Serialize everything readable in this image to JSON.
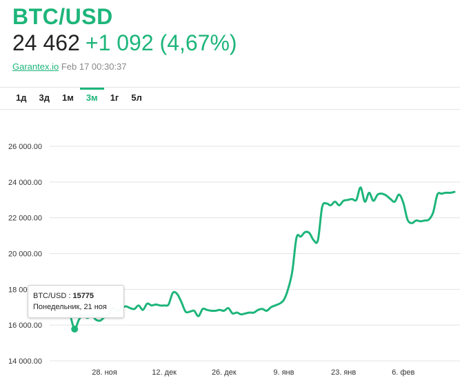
{
  "header": {
    "pair": "BTC/USD",
    "price": "24 462",
    "change": "+1 092 (4,67%)",
    "source": "Garantex.io",
    "timestamp": "Feb 17 00:30:37"
  },
  "tabs": [
    {
      "label": "1д",
      "active": false
    },
    {
      "label": "3д",
      "active": false
    },
    {
      "label": "1м",
      "active": false
    },
    {
      "label": "3м",
      "active": true
    },
    {
      "label": "1г",
      "active": false
    },
    {
      "label": "5л",
      "active": false
    }
  ],
  "tooltip": {
    "series": "BTC/USD",
    "separator": " : ",
    "value": "15775",
    "date": "Понедельник, 21 ноя"
  },
  "colors": {
    "accent": "#1db57a",
    "grid": "#e3e3e3",
    "text": "#222222"
  },
  "chart_data": {
    "type": "line",
    "ylim": [
      14000,
      26000
    ],
    "ytick_labels": [
      "14 000.00",
      "16 000.00",
      "18 000.00",
      "20 000.00",
      "22 000.00",
      "24 000.00",
      "26 000.00"
    ],
    "yticks": [
      14000,
      16000,
      18000,
      20000,
      22000,
      24000,
      26000
    ],
    "xlim": [
      0,
      90
    ],
    "xticks": [
      {
        "x": 8,
        "label": "28. ноя"
      },
      {
        "x": 22,
        "label": "12. дек"
      },
      {
        "x": 36,
        "label": "26. дек"
      },
      {
        "x": 50,
        "label": "9. янв"
      },
      {
        "x": 64,
        "label": "23. янв"
      },
      {
        "x": 78,
        "label": "6. фев"
      }
    ],
    "grid": true,
    "highlight": {
      "x": 1,
      "y": 15775
    },
    "series": [
      {
        "x": [
          0,
          1,
          2,
          3,
          4,
          5,
          6,
          7,
          8,
          9,
          10,
          11,
          12,
          13,
          14,
          15,
          16,
          17,
          18,
          19,
          20,
          21,
          22,
          23,
          24,
          25,
          26,
          27,
          28,
          29,
          30,
          31,
          32,
          33,
          34,
          35,
          36,
          37,
          38,
          39,
          40,
          41,
          42,
          43,
          44,
          45,
          46,
          47,
          48,
          49,
          50,
          51,
          52,
          53,
          54,
          55,
          56,
          57,
          58,
          59,
          60,
          61,
          62,
          63,
          64,
          65,
          66,
          67,
          68,
          69,
          70,
          71,
          72,
          73,
          74,
          75,
          76,
          77,
          78,
          79,
          80,
          81,
          82,
          83,
          84,
          85,
          86,
          87,
          88,
          89,
          90
        ],
        "y": [
          16550,
          15775,
          16300,
          16550,
          16400,
          16550,
          16300,
          16250,
          16450,
          16600,
          16950,
          16800,
          16950,
          17050,
          16950,
          16900,
          17100,
          16850,
          17200,
          17100,
          17150,
          17100,
          17100,
          17150,
          17800,
          17750,
          17300,
          16750,
          16750,
          16800,
          16500,
          16900,
          16850,
          16800,
          16800,
          16850,
          16800,
          16950,
          16650,
          16700,
          16600,
          16650,
          16700,
          16700,
          16850,
          16900,
          16800,
          17000,
          17100,
          17200,
          17400,
          18000,
          19000,
          20900,
          20950,
          21200,
          21150,
          20750,
          20750,
          22600,
          22800,
          22700,
          22900,
          22700,
          22950,
          23000,
          23050,
          23000,
          23700,
          22900,
          23400,
          22950,
          23300,
          23350,
          23250,
          23050,
          22900,
          23300,
          22850,
          21900,
          21700,
          21850,
          21800,
          21850,
          21900,
          22300,
          23300,
          23350,
          23400,
          23400,
          23450
        ]
      }
    ]
  }
}
